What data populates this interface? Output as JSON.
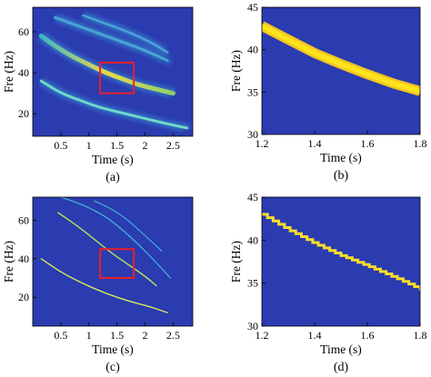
{
  "chart_data": [
    {
      "panel": "a",
      "type": "heatmap",
      "panel_label": "(a)",
      "xlabel": "Time (s)",
      "ylabel": "Fre (Hz)",
      "xlim": [
        0.0,
        2.85
      ],
      "ylim": [
        9,
        72
      ],
      "xticks": [
        0.5,
        1,
        1.5,
        2,
        2.5
      ],
      "xtick_labels": [
        "0.5",
        "1",
        "1.5",
        "2",
        "2.5"
      ],
      "yticks": [
        20,
        40,
        60
      ],
      "ytick_labels": [
        "20",
        "40",
        "60"
      ],
      "background": "#2b3bb0",
      "highlight_box": {
        "x": [
          1.2,
          1.8
        ],
        "y": [
          30,
          45
        ],
        "color": "#e8202a"
      },
      "series": [
        {
          "x": [
            0.15,
            0.4,
            0.7,
            1.0,
            1.3,
            1.6,
            1.9,
            2.2,
            2.5
          ],
          "y": [
            58,
            53,
            48,
            44,
            40,
            37,
            34,
            32,
            30
          ]
        },
        {
          "x": [
            0.15,
            0.5,
            0.9,
            1.2,
            1.5,
            1.8,
            2.1,
            2.4,
            2.75
          ],
          "y": [
            36,
            30,
            26,
            23,
            21,
            19,
            17,
            15,
            13
          ]
        },
        {
          "x": [
            0.4,
            0.8,
            1.2,
            1.6,
            2.0,
            2.4
          ],
          "y": [
            67,
            63,
            59,
            55,
            51,
            46
          ]
        },
        {
          "x": [
            0.9,
            1.3,
            1.7,
            2.1,
            2.4
          ],
          "y": [
            68,
            64,
            60,
            55,
            50
          ]
        }
      ]
    },
    {
      "panel": "b",
      "type": "heatmap",
      "panel_label": "(b)",
      "xlabel": "Time (s)",
      "ylabel": "Fre (Hz)",
      "xlim": [
        1.2,
        1.8
      ],
      "ylim": [
        30,
        45
      ],
      "xticks": [
        1.2,
        1.4,
        1.6,
        1.8
      ],
      "xtick_labels": [
        "1.2",
        "1.4",
        "1.6",
        "1.8"
      ],
      "yticks": [
        30,
        35,
        40,
        45
      ],
      "ytick_labels": [
        "30",
        "35",
        "40",
        "45"
      ],
      "background": "#2b3bb0",
      "series": [
        {
          "x": [
            1.2,
            1.3,
            1.4,
            1.5,
            1.6,
            1.7,
            1.8
          ],
          "y": [
            42.8,
            41.2,
            39.6,
            38.3,
            37.1,
            36.0,
            35.1
          ]
        }
      ]
    },
    {
      "panel": "c",
      "type": "heatmap",
      "panel_label": "(c)",
      "xlabel": "Time (s)",
      "ylabel": "Fre (Hz)",
      "xlim": [
        0.0,
        2.85
      ],
      "ylim": [
        5,
        72
      ],
      "xticks": [
        0.5,
        1,
        1.5,
        2,
        2.5
      ],
      "xtick_labels": [
        "0.5",
        "1",
        "1.5",
        "2",
        "2.5"
      ],
      "yticks": [
        20,
        40,
        60
      ],
      "ytick_labels": [
        "20",
        "40",
        "60"
      ],
      "background": "#2b3bb0",
      "highlight_box": {
        "x": [
          1.2,
          1.8
        ],
        "y": [
          30,
          45
        ],
        "color": "#e8202a"
      },
      "series": [
        {
          "x": [
            0.45,
            0.8,
            1.1,
            1.4,
            1.7,
            2.0,
            2.2
          ],
          "y": [
            64,
            57,
            50,
            43,
            37,
            31,
            26
          ]
        },
        {
          "x": [
            0.15,
            0.5,
            0.9,
            1.3,
            1.7,
            2.1,
            2.4
          ],
          "y": [
            40,
            33,
            27,
            22,
            18,
            15,
            12
          ]
        },
        {
          "x": [
            0.5,
            0.9,
            1.3,
            1.6,
            1.9,
            2.2,
            2.45
          ],
          "y": [
            72,
            68,
            62,
            55,
            47,
            38,
            30
          ]
        },
        {
          "x": [
            1.1,
            1.4,
            1.7,
            2.0,
            2.3
          ],
          "y": [
            70,
            66,
            60,
            52,
            44
          ]
        }
      ]
    },
    {
      "panel": "d",
      "type": "heatmap",
      "panel_label": "(d)",
      "xlabel": "Time (s)",
      "ylabel": "Fre (Hz)",
      "xlim": [
        1.2,
        1.8
      ],
      "ylim": [
        30,
        45
      ],
      "xticks": [
        1.2,
        1.4,
        1.6,
        1.8
      ],
      "xtick_labels": [
        "1.2",
        "1.4",
        "1.6",
        "1.8"
      ],
      "yticks": [
        30,
        35,
        40,
        45
      ],
      "ytick_labels": [
        "30",
        "35",
        "40",
        "45"
      ],
      "background": "#2b3bb0",
      "series": [
        {
          "x": [
            1.2,
            1.3,
            1.4,
            1.5,
            1.6,
            1.7,
            1.8
          ],
          "y": [
            43.0,
            41.2,
            39.6,
            38.2,
            37.0,
            35.7,
            34.3
          ]
        }
      ]
    }
  ]
}
